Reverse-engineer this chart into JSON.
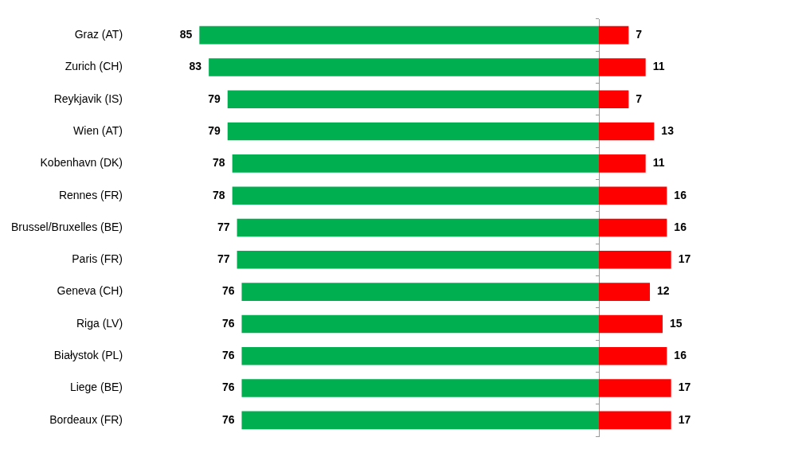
{
  "chart_data": [
    {
      "type": "bar",
      "orientation": "horizontal",
      "categories": [
        "Graz (AT)",
        "Zurich (CH)",
        "Reykjavik (IS)",
        "Wien (AT)",
        "Kobenhavn (DK)",
        "Rennes (FR)",
        "Brussel/Bruxelles (BE)",
        "Paris (FR)",
        "Geneva (CH)",
        "Riga (LV)",
        "Białystok (PL)",
        "Liege (BE)",
        "Bordeaux (FR)"
      ],
      "series": [
        {
          "color": "#00b050",
          "values": [
            85,
            83,
            79,
            79,
            78,
            78,
            77,
            77,
            76,
            76,
            76,
            76,
            76
          ]
        }
      ],
      "tick_labels": "y",
      "grid": false,
      "legend": false,
      "data_labels": true
    },
    {
      "type": "bar",
      "orientation": "horizontal",
      "categories": [
        null,
        null,
        null,
        null,
        null,
        null,
        null,
        null,
        null,
        null,
        null,
        null,
        null
      ],
      "series": [
        {
          "color": "#ff0000",
          "values": [
            7,
            11,
            7,
            13,
            11,
            16,
            16,
            17,
            12,
            15,
            16,
            17,
            17
          ]
        }
      ],
      "tick_labels": false,
      "grid": false,
      "legend": false,
      "data_labels": true
    }
  ]
}
